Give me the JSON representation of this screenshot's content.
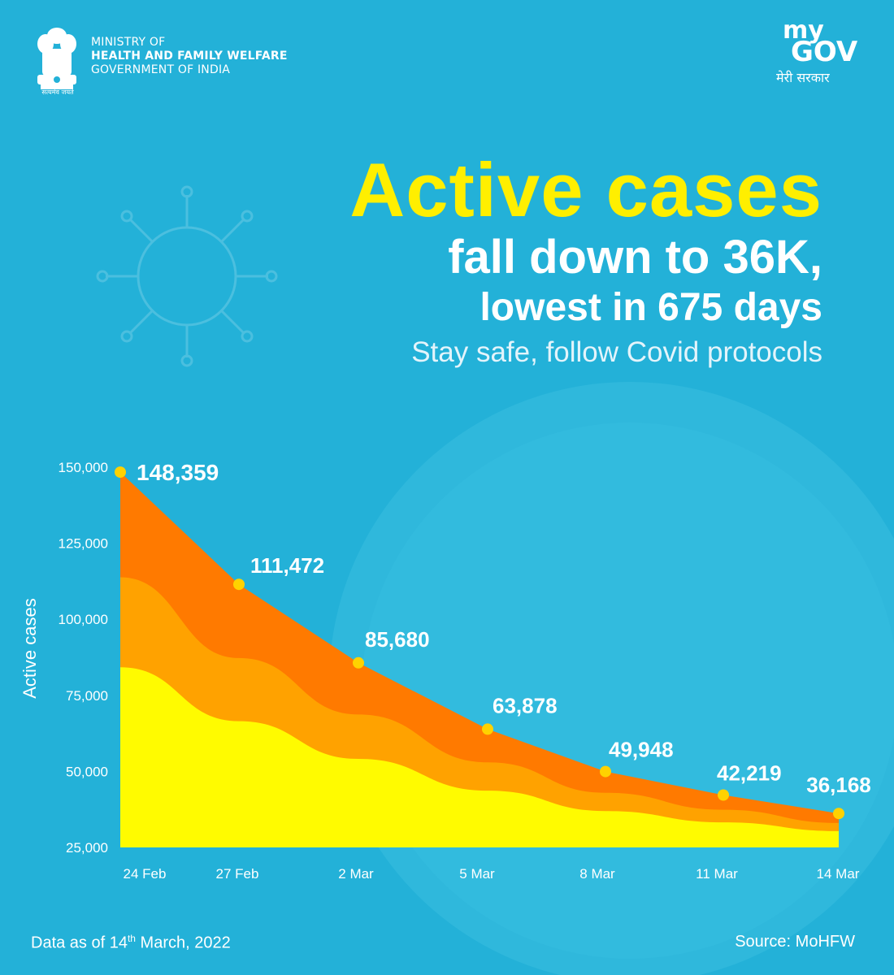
{
  "header": {
    "ministry_line1": "MINISTRY OF",
    "ministry_line2": "HEALTH AND FAMILY WELFARE",
    "ministry_line3": "GOVERNMENT OF INDIA",
    "emblem_motto": "सत्यमेव जयते",
    "mygov_my": "my",
    "mygov_gov": "GOV",
    "mygov_tagline": "मेरी सरकार"
  },
  "headline": {
    "main": "Active cases",
    "line2": "fall down to 36K,",
    "line3": "lowest in 675 days",
    "line4": "Stay safe, follow Covid protocols"
  },
  "colors": {
    "background": "#23b1d8",
    "accent_yellow": "#ffef00",
    "area_dark_orange": "#ff7a00",
    "area_orange": "#ffa200",
    "area_yellow": "#fffb00",
    "marker": "#ffd200"
  },
  "chart_data": {
    "type": "area",
    "title": "Active cases",
    "xlabel": "",
    "ylabel": "Active cases",
    "categories": [
      "24 Feb",
      "27 Feb",
      "2 Mar",
      "5 Mar",
      "8 Mar",
      "11 Mar",
      "14 Mar"
    ],
    "values": [
      148359,
      111472,
      85680,
      63878,
      49948,
      42219,
      36168
    ],
    "data_labels": [
      "148,359",
      "111,472",
      "85,680",
      "63,878",
      "49,948",
      "42,219",
      "36,168"
    ],
    "yticks": [
      25000,
      50000,
      75000,
      100000,
      125000,
      150000
    ],
    "ytick_labels": [
      "25,000",
      "50,000",
      "75,000",
      "100,000",
      "125,000",
      "150,000"
    ],
    "ylim": [
      25000,
      150000
    ],
    "grid": false
  },
  "footer": {
    "data_as_of_prefix": "Data as of 14",
    "data_as_of_sup": "th",
    "data_as_of_suffix": " March, 2022",
    "source": "Source: MoHFW"
  }
}
